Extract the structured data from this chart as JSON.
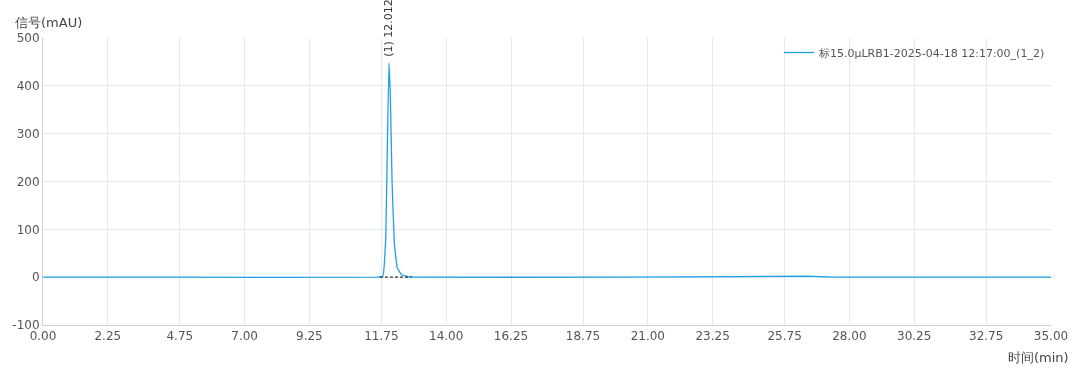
{
  "chart_data": {
    "type": "line",
    "xlabel": "时间(min)",
    "ylabel": "信号(mAU)",
    "xlim": [
      0,
      35
    ],
    "ylim": [
      -100,
      500
    ],
    "xticks": [
      {
        "value": 0,
        "label": "0.00"
      },
      {
        "value": 2.25,
        "label": "2.25"
      },
      {
        "value": 4.75,
        "label": "4.75"
      },
      {
        "value": 7,
        "label": "7.00"
      },
      {
        "value": 9.25,
        "label": "9.25"
      },
      {
        "value": 11.75,
        "label": "11.75"
      },
      {
        "value": 14,
        "label": "14.00"
      },
      {
        "value": 16.25,
        "label": "16.25"
      },
      {
        "value": 18.75,
        "label": "18.75"
      },
      {
        "value": 21,
        "label": "21.00"
      },
      {
        "value": 23.25,
        "label": "23.25"
      },
      {
        "value": 25.75,
        "label": "25.75"
      },
      {
        "value": 28,
        "label": "28.00"
      },
      {
        "value": 30.25,
        "label": "30.25"
      },
      {
        "value": 32.75,
        "label": "32.75"
      },
      {
        "value": 35,
        "label": "35.00"
      }
    ],
    "yticks": [
      -100,
      0,
      100,
      200,
      300,
      400,
      500
    ],
    "grid": true,
    "legend": "top right",
    "marker": "none",
    "series": [
      {
        "name": "标15.0μLRB1-2025-04-18 12:17:00_(1_2)",
        "color": "#1ea0e6",
        "line_style": "solid",
        "x": [
          0,
          5,
          11.6,
          11.8,
          11.9,
          11.95,
          12.012,
          12.06,
          12.12,
          12.2,
          12.3,
          12.45,
          12.7,
          13,
          20,
          24,
          26.5,
          27.5,
          35
        ],
        "values": [
          0,
          0,
          0,
          2,
          80,
          250,
          448,
          380,
          200,
          70,
          20,
          5,
          1,
          0,
          0,
          1,
          2,
          0,
          0
        ]
      },
      {
        "color": "#333333",
        "line_style": "dashed",
        "x": [
          11.7,
          12.8
        ],
        "values": [
          0,
          0
        ]
      }
    ],
    "annotations": [
      {
        "text": "(1) 12.012",
        "x": 12.012,
        "y": 448
      }
    ]
  }
}
